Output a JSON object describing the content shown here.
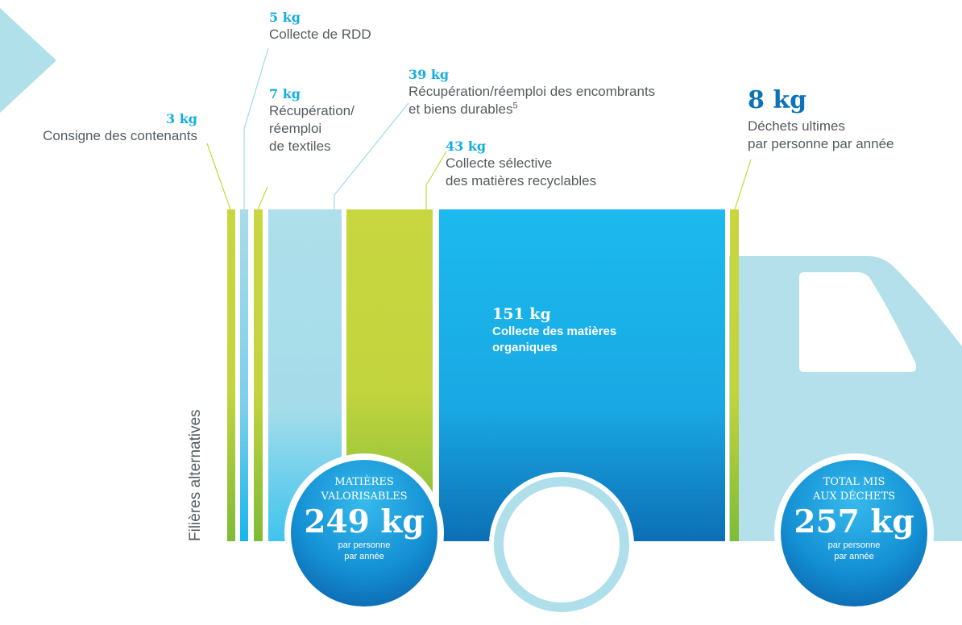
{
  "streams": [
    {
      "id": "consigne",
      "kg": "3 kg",
      "label": "Consigne des contenants",
      "color": "#c6d63f"
    },
    {
      "id": "rdd",
      "kg": "5 kg",
      "label": "Collecte de RDD",
      "color": "#9fd8e8"
    },
    {
      "id": "textiles",
      "kg": "7 kg",
      "label_lines": [
        "Récupération/",
        "réemploi",
        "de textiles"
      ],
      "color": "#c6d63f"
    },
    {
      "id": "encombrants",
      "kg": "39 kg",
      "label_lines": [
        "Récupération/réemploi des encombrants",
        "et biens durables"
      ],
      "footnote": "5",
      "color": "#aedfea"
    },
    {
      "id": "recyclables",
      "kg": "43 kg",
      "label_lines": [
        "Collecte sélective",
        "des matières recyclables"
      ],
      "color": "#c6d63f"
    },
    {
      "id": "organiques",
      "kg": "151 kg",
      "label_lines": [
        "Collecte des matières",
        "organiques"
      ],
      "color": "#1bb8ec"
    },
    {
      "id": "ultimes",
      "kg": "8 kg",
      "label_lines": [
        "Déchets ultimes",
        "par personne par année"
      ],
      "color": "#c6d63f"
    }
  ],
  "vertical_label": "Filières alternatives",
  "circles": {
    "valorisables": {
      "heading_lines": [
        "MATIÈRES",
        "VALORISABLES"
      ],
      "kg": "249 kg",
      "sub_lines": [
        "par personne",
        "par année"
      ]
    },
    "total": {
      "heading_lines": [
        "TOTAL MIS",
        "AUX DÉCHETS"
      ],
      "kg": "257 kg",
      "sub_lines": [
        "par personne",
        "par année"
      ]
    }
  },
  "colors": {
    "green": "#c6d63f",
    "green_dark": "#86bd3a",
    "light_blue": "#aedfea",
    "blue": "#1bb8ec",
    "blue_dark": "#0d72b6",
    "truck_cab": "#b3e0ea"
  }
}
